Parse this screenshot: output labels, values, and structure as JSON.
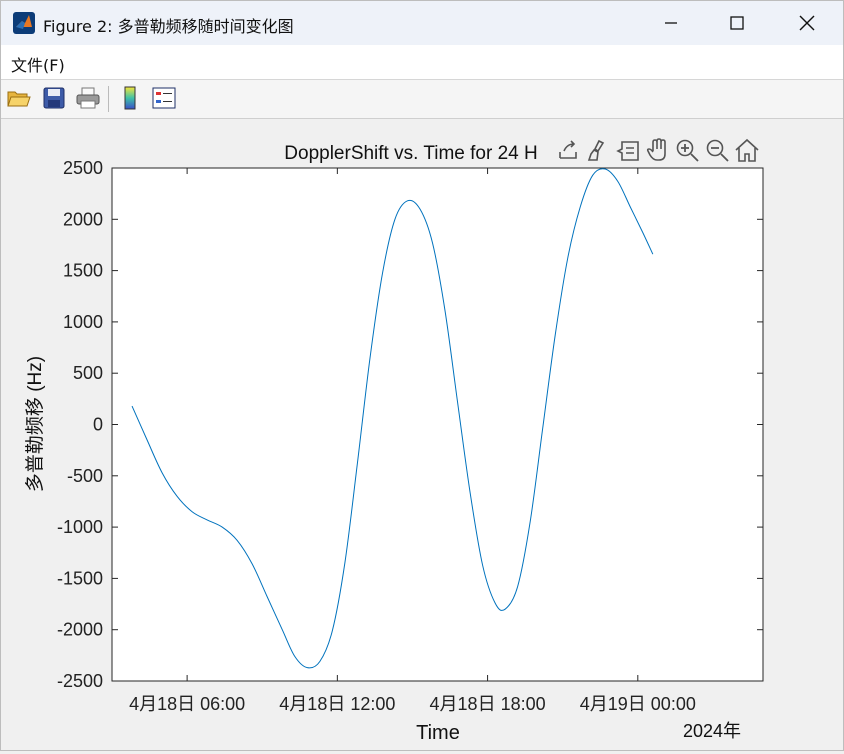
{
  "window": {
    "title": "Figure 2: 多普勒频移随时间变化图",
    "icon": "matlab-logo-icon"
  },
  "menu": {
    "items": [
      {
        "label": "文件(F)"
      }
    ]
  },
  "toolbar": {
    "buttons": [
      "open-folder-icon",
      "save-icon",
      "print-icon",
      "colorbar-icon",
      "legend-icon"
    ]
  },
  "axes_toolbar": {
    "buttons": [
      "export-icon",
      "brush-icon",
      "data-tips-icon",
      "pan-icon",
      "zoom-in-icon",
      "zoom-out-icon",
      "home-icon"
    ]
  },
  "chart_data": {
    "type": "line",
    "title": "DopplerShift vs. Time for 24 H",
    "xlabel": "Time",
    "ylabel": "多普勒频移 (Hz)",
    "x_secondary_label": "2024年",
    "ylim": [
      -2500,
      2500
    ],
    "yticks": [
      2500,
      2000,
      1500,
      1000,
      500,
      0,
      -500,
      -1000,
      -1500,
      -2000,
      -2500
    ],
    "xlim_hours": [
      3,
      29
    ],
    "xticks": [
      {
        "label": "4月18日 06:00",
        "hour": 6
      },
      {
        "label": "4月18日 12:00",
        "hour": 12
      },
      {
        "label": "4月18日 18:00",
        "hour": 18
      },
      {
        "label": "4月19日 00:00",
        "hour": 24
      }
    ],
    "line_color": "#0072bd",
    "series": [
      {
        "points": [
          [
            3.8,
            180
          ],
          [
            4.4,
            -150
          ],
          [
            5.0,
            -470
          ],
          [
            5.6,
            -700
          ],
          [
            6.2,
            -850
          ],
          [
            6.8,
            -930
          ],
          [
            7.4,
            -1000
          ],
          [
            8.0,
            -1130
          ],
          [
            8.6,
            -1360
          ],
          [
            9.2,
            -1680
          ],
          [
            9.8,
            -2000
          ],
          [
            10.3,
            -2260
          ],
          [
            10.8,
            -2370
          ],
          [
            11.3,
            -2310
          ],
          [
            11.8,
            -2010
          ],
          [
            12.3,
            -1350
          ],
          [
            12.8,
            -380
          ],
          [
            13.3,
            640
          ],
          [
            13.8,
            1470
          ],
          [
            14.3,
            2000
          ],
          [
            14.8,
            2180
          ],
          [
            15.3,
            2100
          ],
          [
            15.8,
            1770
          ],
          [
            16.3,
            1110
          ],
          [
            16.8,
            220
          ],
          [
            17.3,
            -660
          ],
          [
            17.8,
            -1370
          ],
          [
            18.3,
            -1740
          ],
          [
            18.7,
            -1800
          ],
          [
            19.2,
            -1580
          ],
          [
            19.7,
            -950
          ],
          [
            20.2,
            -40
          ],
          [
            20.7,
            870
          ],
          [
            21.2,
            1620
          ],
          [
            21.7,
            2120
          ],
          [
            22.2,
            2430
          ],
          [
            22.7,
            2490
          ],
          [
            23.2,
            2370
          ],
          [
            23.7,
            2120
          ],
          [
            24.2,
            1870
          ],
          [
            24.6,
            1660
          ]
        ]
      }
    ]
  }
}
